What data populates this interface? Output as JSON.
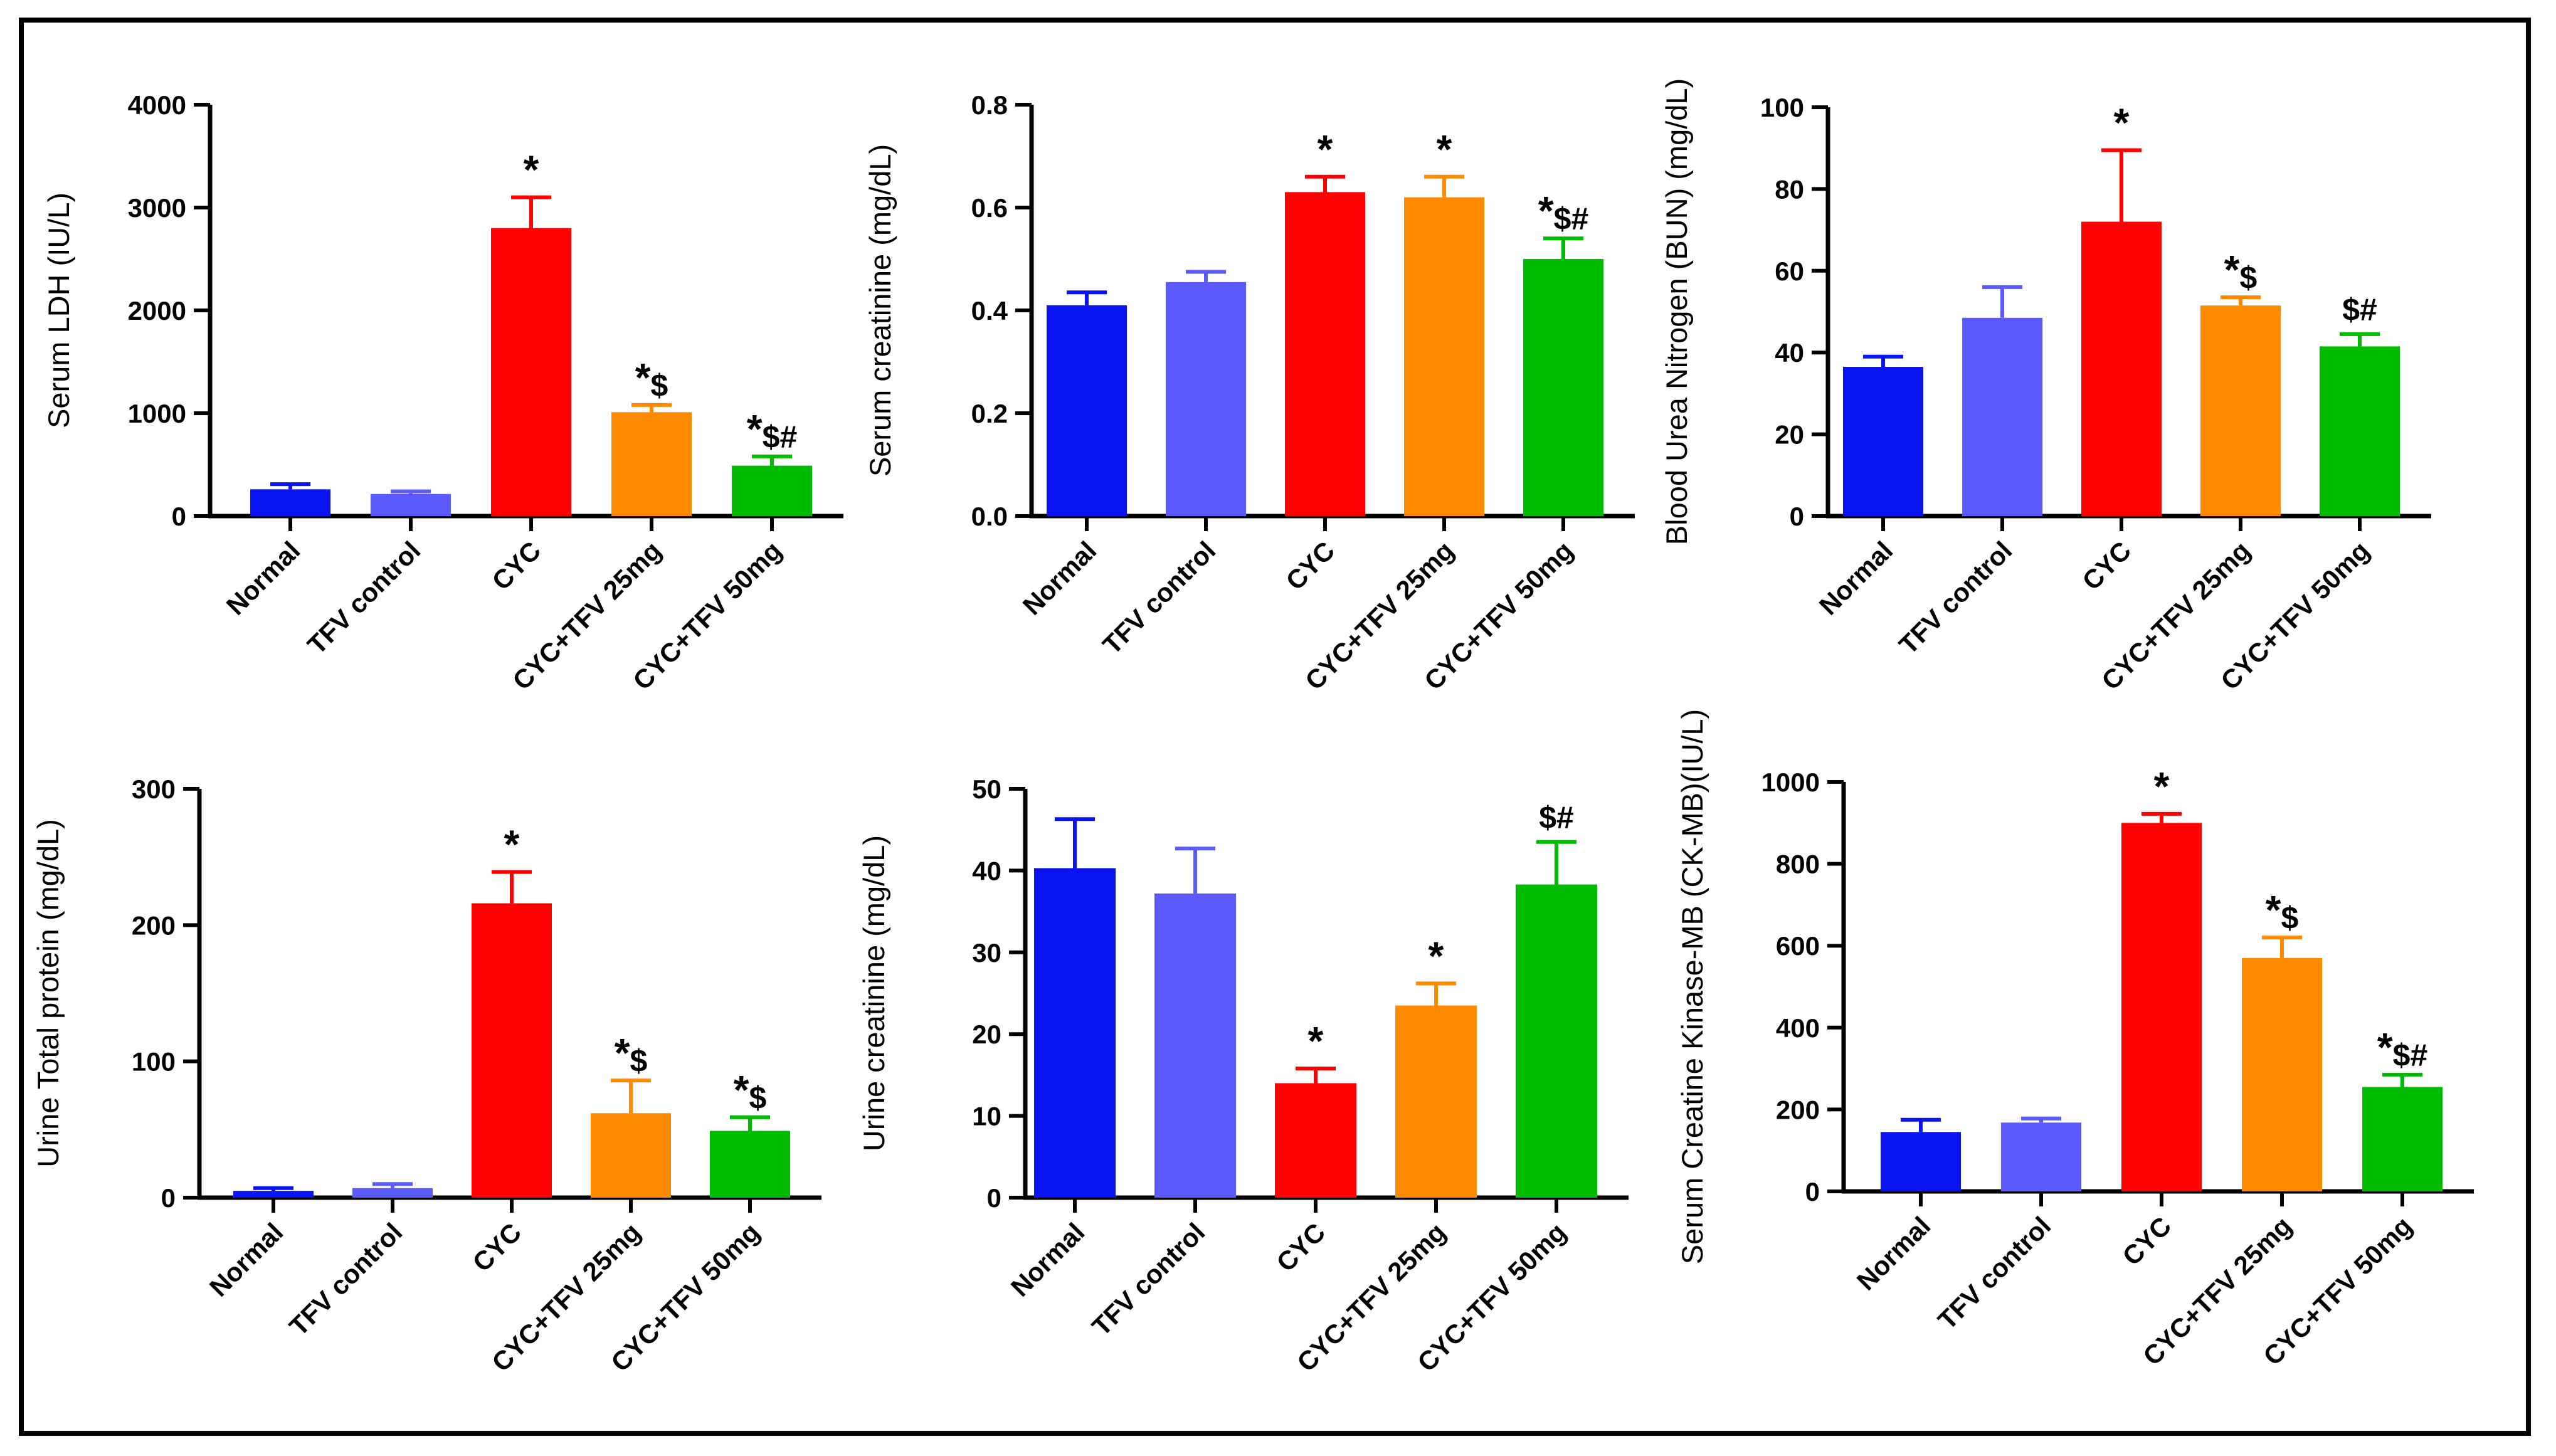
{
  "figure": {
    "categories": [
      "Normal",
      "TFV control",
      "CYC",
      "CYC+TFV 25mg",
      "CYC+TFV 50mg"
    ],
    "colors": [
      "#0a14f0",
      "#5a5aff",
      "#ff0000",
      "#ff8a00",
      "#00bb00"
    ]
  },
  "chart_data": [
    {
      "type": "bar",
      "ylabel": "Serum LDH (IU/L)",
      "ylim": [
        0,
        4000
      ],
      "yticks": [
        "0",
        "1000",
        "2000",
        "3000",
        "4000"
      ],
      "categories": [
        "Normal",
        "TFV control",
        "CYC",
        "CYC+TFV 25mg",
        "CYC+TFV 50mg"
      ],
      "values": [
        260,
        215,
        2800,
        1010,
        490
      ],
      "errors": [
        50,
        25,
        300,
        70,
        90
      ],
      "annotations": [
        "",
        "",
        "*",
        "*$",
        "*$#"
      ]
    },
    {
      "type": "bar",
      "ylabel": "Serum creatinine (mg/dL)",
      "ylim": [
        0,
        0.8
      ],
      "yticks": [
        "0.0",
        "0.2",
        "0.4",
        "0.6",
        "0.8"
      ],
      "categories": [
        "Normal",
        "TFV control",
        "CYC",
        "CYC+TFV 25mg",
        "CYC+TFV 50mg"
      ],
      "values": [
        0.41,
        0.455,
        0.63,
        0.62,
        0.5
      ],
      "errors": [
        0.025,
        0.02,
        0.03,
        0.04,
        0.04
      ],
      "annotations": [
        "",
        "",
        "*",
        "*",
        "*$#"
      ]
    },
    {
      "type": "bar",
      "ylabel": "Blood Urea Nitrogen (BUN) (mg/dL)",
      "ylim": [
        0,
        100
      ],
      "yticks": [
        "0",
        "20",
        "40",
        "60",
        "80",
        "100"
      ],
      "categories": [
        "Normal",
        "TFV control",
        "CYC",
        "CYC+TFV 25mg",
        "CYC+TFV 50mg"
      ],
      "values": [
        36.5,
        48.5,
        72,
        51.5,
        41.5
      ],
      "errors": [
        2.5,
        7.5,
        17.5,
        2,
        3
      ],
      "annotations": [
        "",
        "",
        "*",
        "*$",
        "$#"
      ]
    },
    {
      "type": "bar",
      "ylabel": "Urine Total protein (mg/dL)",
      "ylim": [
        0,
        300
      ],
      "yticks": [
        "0",
        "100",
        "200",
        "300"
      ],
      "categories": [
        "Normal",
        "TFV control",
        "CYC",
        "CYC+TFV 25mg",
        "CYC+TFV 50mg"
      ],
      "values": [
        5,
        7,
        216,
        62,
        49
      ],
      "errors": [
        2,
        3,
        23,
        24,
        10
      ],
      "annotations": [
        "",
        "",
        "*",
        "*$",
        "*$"
      ]
    },
    {
      "type": "bar",
      "ylabel": "Urine creatinine (mg/dL)",
      "ylim": [
        0,
        50
      ],
      "yticks": [
        "0",
        "10",
        "20",
        "30",
        "40",
        "50"
      ],
      "categories": [
        "Normal",
        "TFV control",
        "CYC",
        "CYC+TFV 25mg",
        "CYC+TFV 50mg"
      ],
      "values": [
        40.3,
        37.2,
        14,
        23.5,
        38.3
      ],
      "errors": [
        6,
        5.5,
        1.8,
        2.7,
        5.2
      ],
      "annotations": [
        "",
        "",
        "*",
        "*",
        "$#"
      ]
    },
    {
      "type": "bar",
      "ylabel": "Serum Creatine Kinase-MB (CK-MB)(IU/L)",
      "ylim": [
        0,
        1000
      ],
      "yticks": [
        "0",
        "200",
        "400",
        "600",
        "800",
        "1000"
      ],
      "categories": [
        "Normal",
        "TFV control",
        "CYC",
        "CYC+TFV 25mg",
        "CYC+TFV 50mg"
      ],
      "values": [
        145,
        168,
        900,
        570,
        255
      ],
      "errors": [
        30,
        10,
        22,
        50,
        30
      ],
      "annotations": [
        "",
        "",
        "*",
        "*$",
        "*$#"
      ]
    }
  ]
}
